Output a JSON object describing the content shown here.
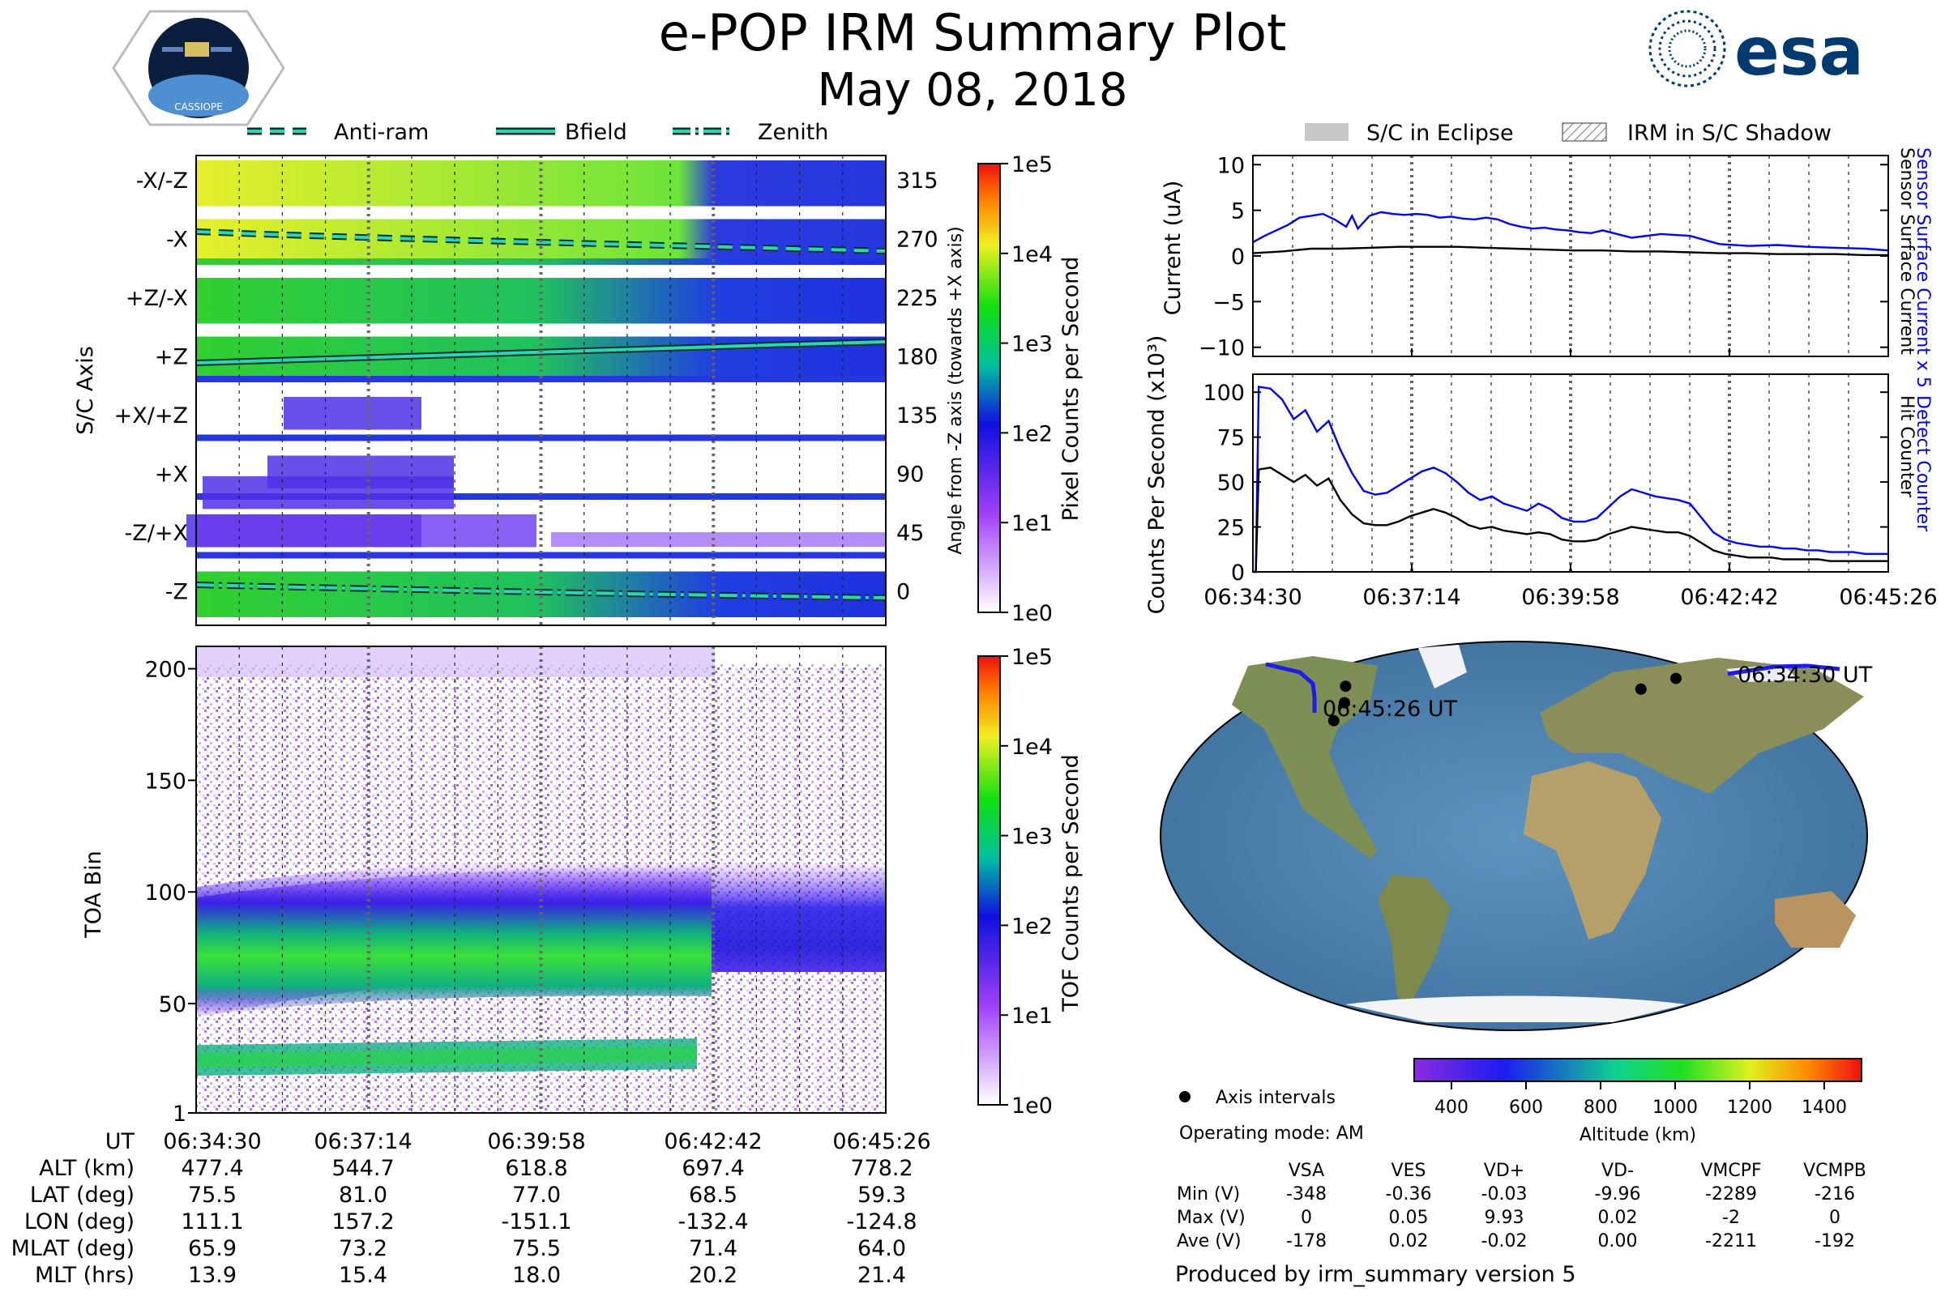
{
  "title": "e-POP IRM Summary Plot",
  "subtitle": "May 08, 2018",
  "logos": {
    "mission": "CASSIOPE",
    "agency": "esa"
  },
  "colors": {
    "blue": "#0000ff",
    "black": "#000000",
    "teal": "#2ad7b4",
    "dark_teal": "#06302a"
  },
  "colorbar_ticks": [
    "1e5",
    "1e4",
    "1e3",
    "1e2",
    "1e1",
    "1e0"
  ],
  "chart_data": [
    {
      "id": "angle-spectrogram",
      "type": "heatmap",
      "ylabel": "S/C Axis",
      "ylabel_right": "Angle from -Z axis (towards +X axis)",
      "y_categories": [
        "-X/-Z",
        "-X",
        "+Z/-X",
        "+Z",
        "+X/+Z",
        "+X",
        "-Z/+X",
        "-Z"
      ],
      "angles": [
        "315",
        "270",
        "225",
        "180",
        "135",
        "90",
        "45",
        "0"
      ],
      "legend": [
        "Anti-ram",
        "Bfield",
        "Zenith"
      ],
      "colorbar_label": "Pixel Counts per Second",
      "colorbar_range": [
        1,
        100000
      ]
    },
    {
      "id": "toa-spectrogram",
      "type": "heatmap",
      "ylabel": "TOA Bin",
      "yticks": [
        "200",
        "150",
        "100",
        "50",
        "1"
      ],
      "ylim": [
        1,
        210
      ],
      "colorbar_label": "TOF Counts per Second",
      "colorbar_range": [
        1,
        100000
      ]
    },
    {
      "id": "sensor-current",
      "type": "line",
      "ylabel": "Current (uA)",
      "right_labels": [
        "Sensor Surface Current x 5",
        "Sensor Surface Current"
      ],
      "legend": [
        "S/C in Eclipse",
        "IRM in S/C Shadow"
      ],
      "ylim": [
        -11,
        11
      ],
      "yticks": [
        "10",
        "5",
        "0",
        "−5",
        "−10"
      ],
      "series": [
        {
          "name": "Sensor Surface Current x 5",
          "color": "#0000ff",
          "x": [
            0,
            0.2,
            0.4,
            0.6,
            0.8,
            1.0,
            1.2,
            1.4,
            1.6,
            1.7,
            1.8,
            2.0,
            2.2,
            2.4,
            2.6,
            2.8,
            3.0,
            3.2,
            3.4,
            3.6,
            3.8,
            4.0,
            4.2,
            4.4,
            4.6,
            4.8,
            5.0,
            5.2,
            5.4,
            5.6,
            5.8,
            6.0,
            6.5,
            7.0,
            7.5,
            8.0,
            8.5,
            9.0,
            9.5,
            10.0,
            10.5,
            10.9
          ],
          "values": [
            1.5,
            2.2,
            2.8,
            3.4,
            4.2,
            4.4,
            4.6,
            4.0,
            3.2,
            4.4,
            3.0,
            4.4,
            4.8,
            4.6,
            4.5,
            4.6,
            4.5,
            4.2,
            4.3,
            4.1,
            4.0,
            4.2,
            4.0,
            3.5,
            3.2,
            3.0,
            3.1,
            2.9,
            2.8,
            2.6,
            2.5,
            2.8,
            2.0,
            2.4,
            2.2,
            1.3,
            1.1,
            1.2,
            1.0,
            0.9,
            0.8,
            0.6
          ]
        },
        {
          "name": "Sensor Surface Current",
          "color": "#000000",
          "x": [
            0,
            0.5,
            1.0,
            1.5,
            2.0,
            2.5,
            3.0,
            3.5,
            4.0,
            4.5,
            5.0,
            5.5,
            6.0,
            6.5,
            7.0,
            7.5,
            8.0,
            8.5,
            9.0,
            9.5,
            10.0,
            10.5,
            10.9
          ],
          "values": [
            0.3,
            0.5,
            0.8,
            0.8,
            0.9,
            1.0,
            1.0,
            1.0,
            0.9,
            0.8,
            0.7,
            0.6,
            0.6,
            0.5,
            0.5,
            0.4,
            0.3,
            0.3,
            0.2,
            0.2,
            0.2,
            0.1,
            0.1
          ]
        }
      ]
    },
    {
      "id": "detect-counter",
      "type": "line",
      "ylabel": "Counts Per Second (x10³)",
      "right_labels": [
        "Detect Counter",
        "Hit Counter"
      ],
      "ylim": [
        0,
        110
      ],
      "yticks": [
        "100",
        "75",
        "50",
        "25",
        "0"
      ],
      "series": [
        {
          "name": "Detect Counter",
          "color": "#0000ff",
          "x": [
            0,
            0.05,
            0.1,
            0.3,
            0.5,
            0.7,
            0.9,
            1.1,
            1.3,
            1.5,
            1.7,
            1.9,
            2.1,
            2.3,
            2.5,
            2.7,
            2.9,
            3.1,
            3.3,
            3.5,
            3.7,
            3.9,
            4.1,
            4.3,
            4.5,
            4.7,
            4.9,
            5.1,
            5.3,
            5.5,
            5.7,
            5.9,
            6.1,
            6.3,
            6.5,
            6.7,
            6.9,
            7.1,
            7.3,
            7.5,
            7.7,
            7.9,
            8.1,
            8.3,
            8.5,
            8.7,
            8.9,
            9.1,
            9.3,
            9.5,
            9.7,
            9.9,
            10.1,
            10.3,
            10.5,
            10.9
          ],
          "values": [
            0,
            0,
            103,
            102,
            96,
            85,
            90,
            78,
            84,
            68,
            55,
            45,
            43,
            44,
            48,
            52,
            56,
            58,
            55,
            50,
            44,
            40,
            42,
            38,
            36,
            34,
            38,
            35,
            30,
            28,
            28,
            30,
            36,
            42,
            46,
            44,
            42,
            41,
            40,
            38,
            30,
            22,
            18,
            16,
            15,
            14,
            14,
            13,
            13,
            12,
            12,
            11,
            11,
            11,
            10,
            10
          ]
        },
        {
          "name": "Hit Counter",
          "color": "#000000",
          "x": [
            0,
            0.05,
            0.1,
            0.3,
            0.5,
            0.7,
            0.9,
            1.1,
            1.3,
            1.5,
            1.7,
            1.9,
            2.1,
            2.3,
            2.5,
            2.7,
            2.9,
            3.1,
            3.3,
            3.5,
            3.7,
            3.9,
            4.1,
            4.3,
            4.5,
            4.7,
            4.9,
            5.1,
            5.3,
            5.5,
            5.7,
            5.9,
            6.1,
            6.3,
            6.5,
            6.7,
            6.9,
            7.1,
            7.3,
            7.5,
            7.7,
            7.9,
            8.1,
            8.3,
            8.5,
            8.7,
            8.9,
            9.1,
            9.3,
            9.5,
            9.7,
            9.9,
            10.1,
            10.3,
            10.5,
            10.9
          ],
          "values": [
            0,
            0,
            57,
            58,
            54,
            50,
            54,
            48,
            52,
            40,
            32,
            27,
            26,
            26,
            28,
            31,
            33,
            35,
            33,
            30,
            26,
            24,
            25,
            23,
            22,
            21,
            22,
            21,
            18,
            17,
            17,
            18,
            21,
            23,
            25,
            24,
            23,
            22,
            22,
            20,
            16,
            12,
            10,
            9,
            8,
            8,
            8,
            7,
            7,
            7,
            7,
            6,
            6,
            6,
            6,
            6
          ]
        }
      ]
    },
    {
      "id": "ground-track-map",
      "type": "scatter",
      "labels": [
        "06:34:30 UT",
        "06:45:26 UT"
      ],
      "legend": [
        "Axis intervals"
      ],
      "points": [
        {
          "lon": 111.1,
          "lat": 75.5
        },
        {
          "lon": 157.2,
          "lat": 81.0
        },
        {
          "lon": -151.1,
          "lat": 77.0
        },
        {
          "lon": -132.4,
          "lat": 68.5
        },
        {
          "lon": -124.8,
          "lat": 59.3
        }
      ],
      "colorbar_label": "Altitude (km)",
      "colorbar_ticks": [
        "400",
        "600",
        "800",
        "1000",
        "1200",
        "1400"
      ],
      "colorbar_range": [
        300,
        1500
      ]
    }
  ],
  "xticks": [
    "06:34:30",
    "06:37:14",
    "06:39:58",
    "06:42:42",
    "06:45:26"
  ],
  "ephemeris": {
    "header": "UT",
    "times": [
      "06:34:30",
      "06:37:14",
      "06:39:58",
      "06:42:42",
      "06:45:26"
    ],
    "rows": [
      {
        "label": "ALT (km)",
        "values": [
          "477.4",
          "544.7",
          "618.8",
          "697.4",
          "778.2"
        ]
      },
      {
        "label": "LAT (deg)",
        "values": [
          "75.5",
          "81.0",
          "77.0",
          "68.5",
          "59.3"
        ]
      },
      {
        "label": "LON (deg)",
        "values": [
          "111.1",
          "157.2",
          "-151.1",
          "-132.4",
          "-124.8"
        ]
      },
      {
        "label": "MLAT (deg)",
        "values": [
          "65.9",
          "73.2",
          "75.5",
          "71.4",
          "64.0"
        ]
      },
      {
        "label": "MLT (hrs)",
        "values": [
          "13.9",
          "15.4",
          "18.0",
          "20.2",
          "21.4"
        ]
      }
    ]
  },
  "operating_mode": "Operating mode: AM",
  "voltage_table": {
    "columns": [
      "VSA",
      "VES",
      "VD+",
      "VD-",
      "VMCPF",
      "VCMPB"
    ],
    "rows": [
      {
        "label": "Min (V)",
        "values": [
          "-348",
          "-0.36",
          "-0.03",
          "-9.96",
          "-2289",
          "-216"
        ]
      },
      {
        "label": "Max (V)",
        "values": [
          "0",
          "0.05",
          "9.93",
          "0.02",
          "-2",
          "0"
        ]
      },
      {
        "label": "Ave (V)",
        "values": [
          "-178",
          "0.02",
          "-0.02",
          "0.00",
          "-2211",
          "-192"
        ]
      }
    ]
  },
  "footer": "Produced by irm_summary version 5"
}
